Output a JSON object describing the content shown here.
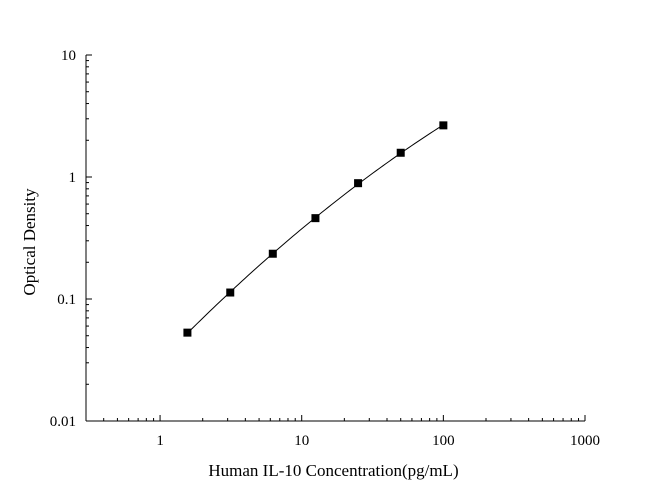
{
  "chart_data": {
    "type": "scatter",
    "title": "",
    "xlabel": "Human IL-10 Concentration(pg/mL)",
    "ylabel": "Optical Density",
    "x_scale": "log",
    "y_scale": "log",
    "xlim": [
      0.3,
      1000
    ],
    "ylim": [
      0.01,
      10
    ],
    "x_ticks": [
      1,
      10,
      100,
      1000
    ],
    "x_tick_labels": [
      "1",
      "10",
      "100",
      "1000"
    ],
    "y_ticks": [
      0.01,
      0.1,
      1,
      10
    ],
    "y_tick_labels": [
      "0.01",
      "0.1",
      "1",
      "10"
    ],
    "grid": false,
    "legend": "none",
    "marker": "square",
    "color": "#000000",
    "series": [
      {
        "x": [
          1.56,
          3.13,
          6.25,
          12.5,
          25,
          50,
          100
        ],
        "y": [
          0.053,
          0.113,
          0.235,
          0.46,
          0.89,
          1.58,
          2.65
        ],
        "fit_curve": true
      }
    ]
  }
}
